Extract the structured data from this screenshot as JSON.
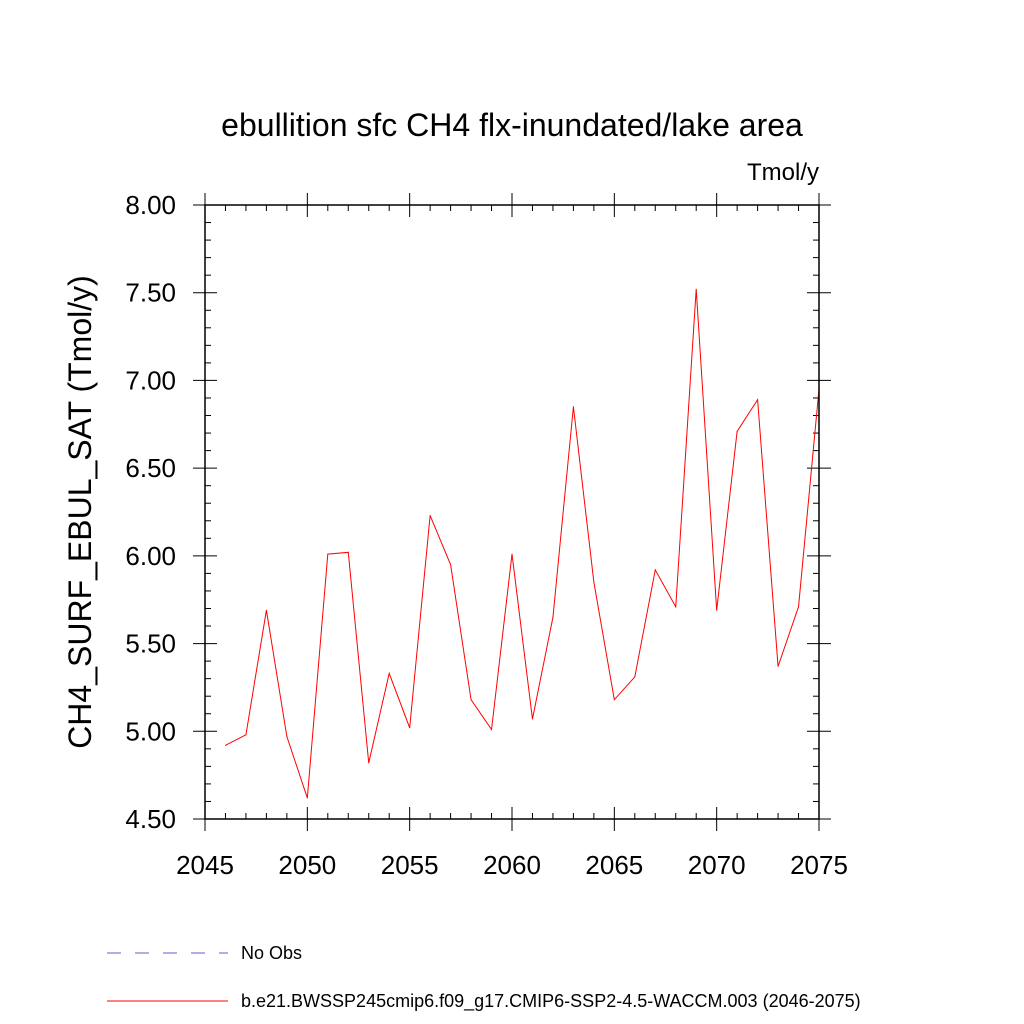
{
  "chart_data": {
    "type": "line",
    "title": "ebullition sfc CH4 flx-inundated/lake area",
    "units": "Tmol/y",
    "ylabel": "CH4_SURF_EBUL_SAT  (Tmol/y)",
    "xlabel": "",
    "xlim": [
      2045,
      2075
    ],
    "ylim": [
      4.5,
      8.0
    ],
    "x_ticks": [
      2045,
      2050,
      2055,
      2060,
      2065,
      2070,
      2075
    ],
    "x_tick_labels": [
      "2045",
      "2050",
      "2055",
      "2060",
      "2065",
      "2070",
      "2075"
    ],
    "y_ticks": [
      4.5,
      5.0,
      5.5,
      6.0,
      6.5,
      7.0,
      7.5,
      8.0
    ],
    "y_tick_labels": [
      "4.50",
      "5.00",
      "5.50",
      "6.00",
      "6.50",
      "7.00",
      "7.50",
      "8.00"
    ],
    "grid": false,
    "legend_position": "bottom",
    "series": [
      {
        "name": "b.e21.BWSSP245cmip6.f09_g17.CMIP6-SSP2-4.5-WACCM.003 (2046-2075)",
        "color": "#ff0000",
        "style": "solid",
        "x": [
          2046,
          2047,
          2048,
          2049,
          2050,
          2051,
          2052,
          2053,
          2054,
          2055,
          2056,
          2057,
          2058,
          2059,
          2060,
          2061,
          2062,
          2063,
          2064,
          2065,
          2066,
          2067,
          2068,
          2069,
          2070,
          2071,
          2072,
          2073,
          2074,
          2075
        ],
        "values": [
          4.92,
          4.98,
          5.69,
          4.97,
          4.62,
          6.01,
          6.02,
          4.82,
          5.33,
          5.02,
          6.23,
          5.95,
          5.18,
          5.01,
          6.01,
          5.07,
          5.65,
          6.85,
          5.85,
          5.18,
          5.31,
          5.92,
          5.71,
          7.52,
          5.69,
          6.71,
          6.89,
          5.37,
          5.71,
          6.95
        ]
      }
    ],
    "legend": [
      {
        "label": "No Obs",
        "color": "#6a5acd",
        "style": "dashed"
      },
      {
        "label": "b.e21.BWSSP245cmip6.f09_g17.CMIP6-SSP2-4.5-WACCM.003 (2046-2075)",
        "color": "#ff0000",
        "style": "solid"
      }
    ]
  }
}
